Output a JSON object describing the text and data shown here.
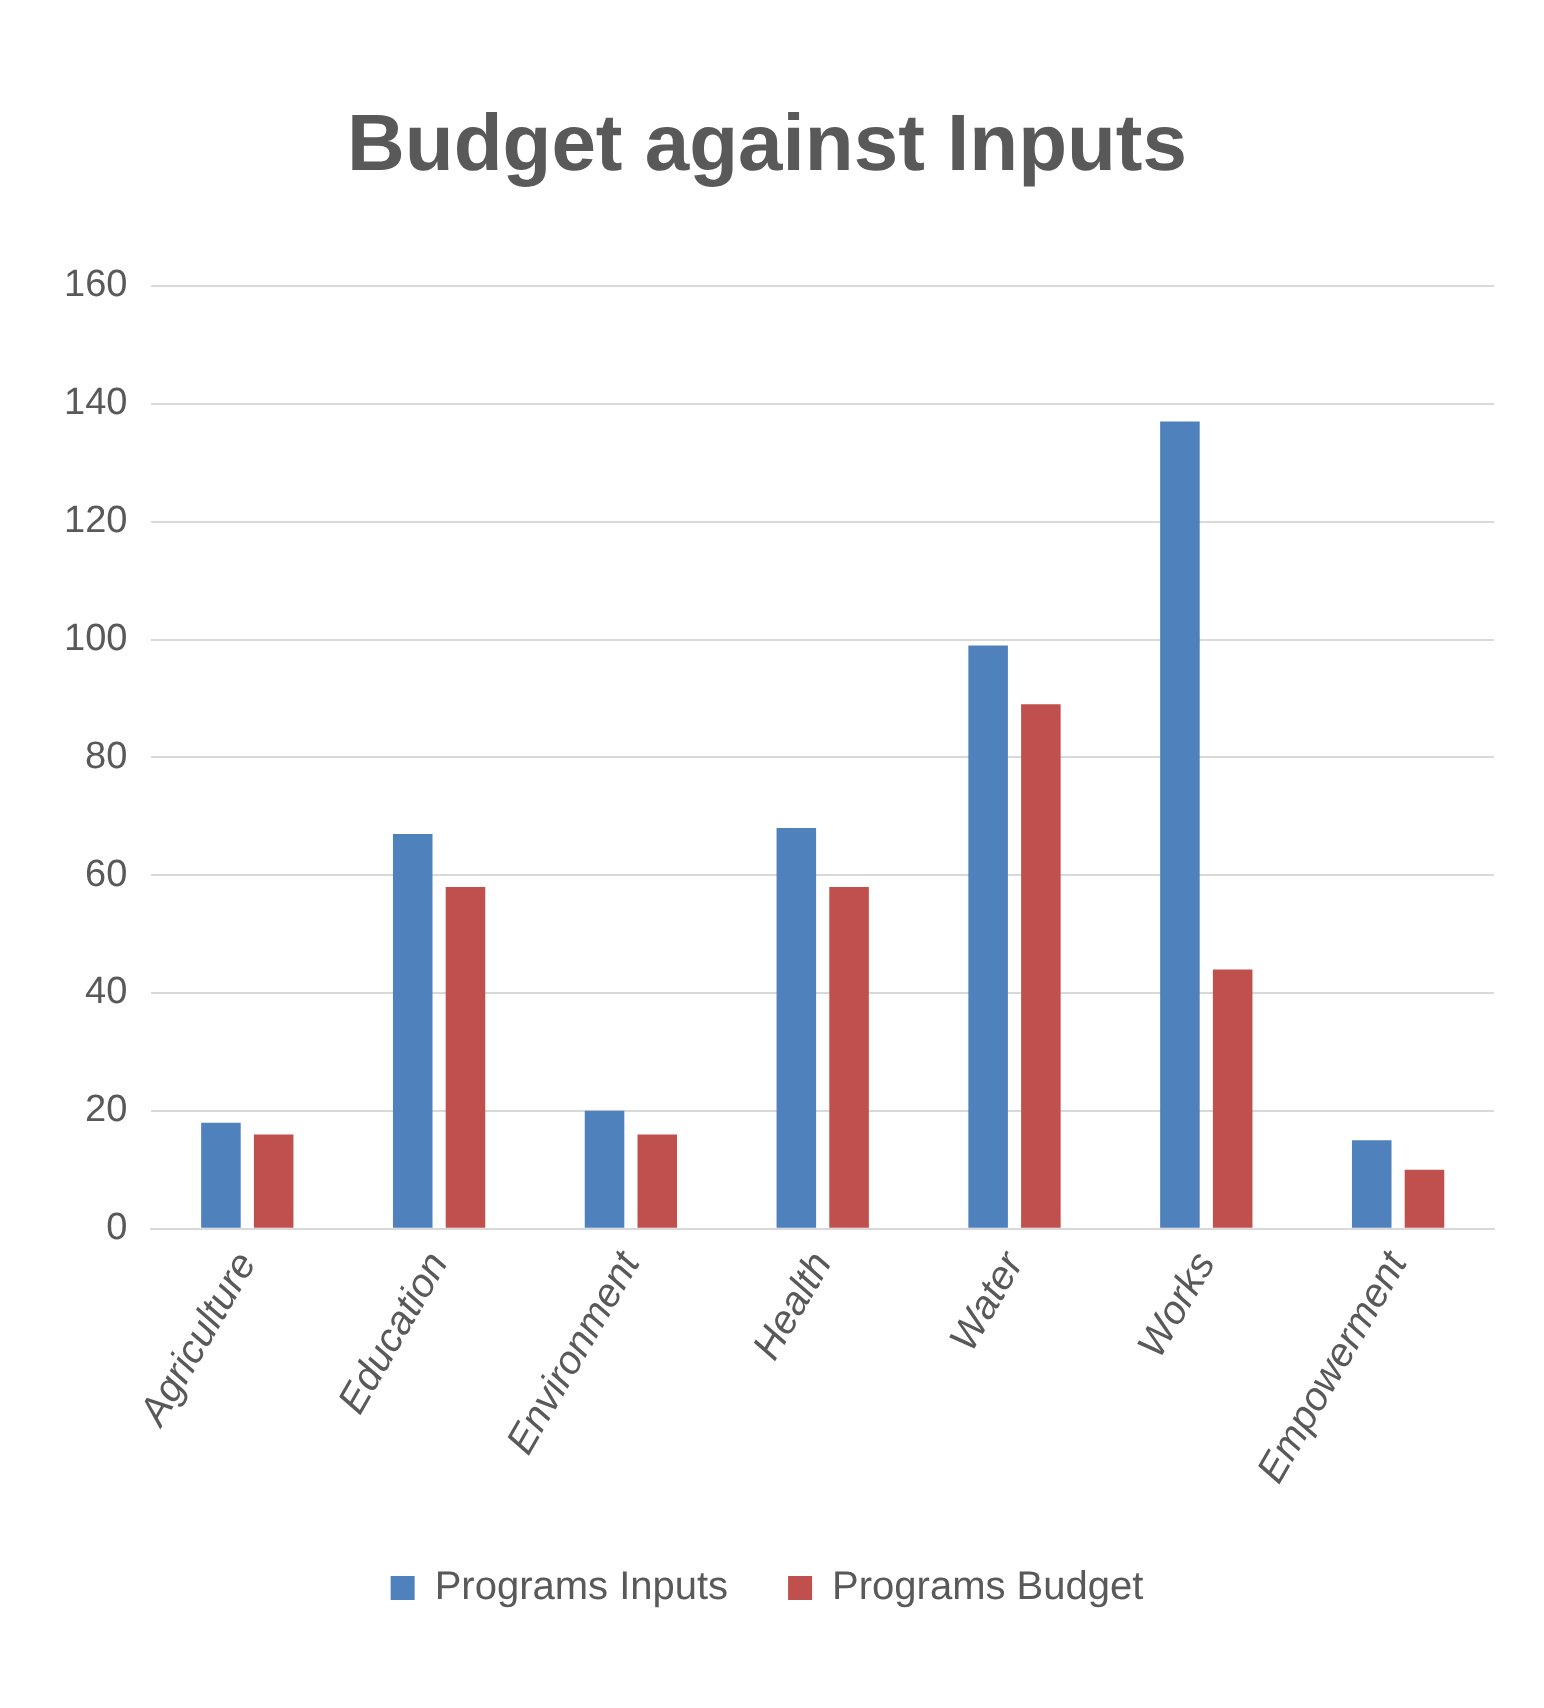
{
  "chart_data": {
    "type": "bar",
    "title": "Budget against Inputs",
    "categories": [
      "Agriculture",
      "Education",
      "Environment",
      "Health",
      "Water",
      "Works",
      "Empowerment"
    ],
    "series": [
      {
        "name": "Programs Inputs",
        "color": "#4f81bd",
        "values": [
          18,
          67,
          20,
          68,
          99,
          137,
          15
        ]
      },
      {
        "name": "Programs Budget",
        "color": "#c0504d",
        "values": [
          16,
          58,
          16,
          58,
          89,
          44,
          10
        ]
      }
    ],
    "ylim": [
      0,
      160
    ],
    "yticks": [
      0,
      20,
      40,
      60,
      80,
      100,
      120,
      140,
      160
    ],
    "grid": "y",
    "legend": "bottom"
  }
}
